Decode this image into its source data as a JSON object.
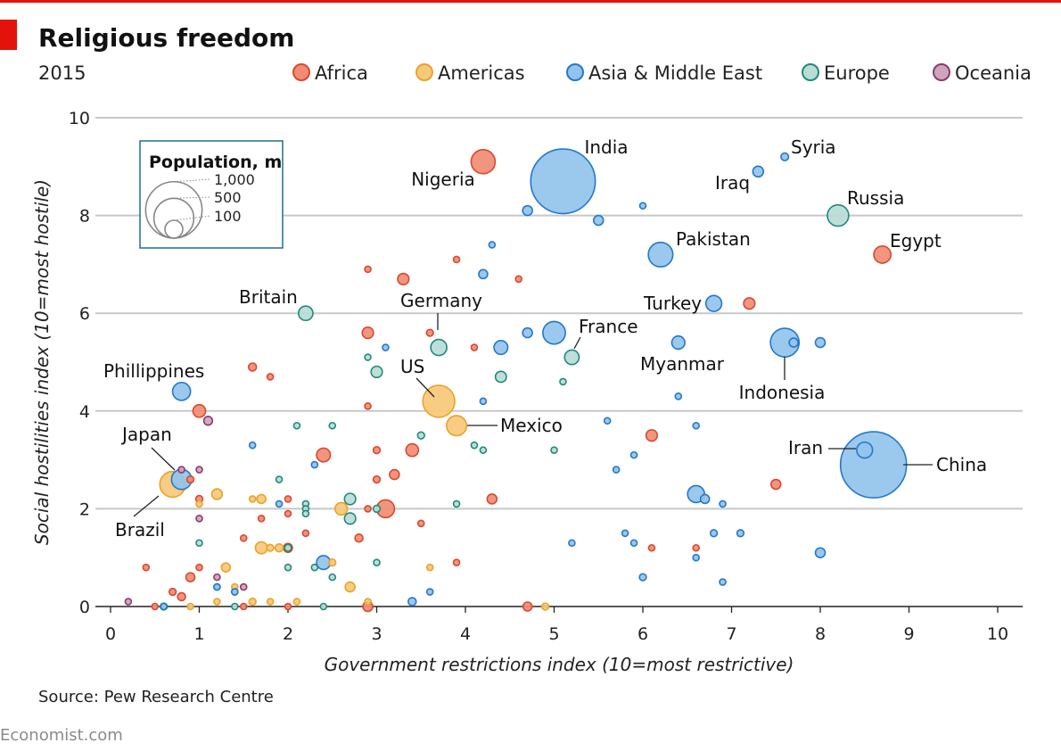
{
  "header": {
    "title": "Religious freedom",
    "subtitle": "2015",
    "source": "Source: Pew Research Centre",
    "brand": "Economist.com",
    "accent": "#e3120b"
  },
  "size_legend": {
    "title": "Population, m",
    "entries": [
      {
        "label": "1,000",
        "value": 1000
      },
      {
        "label": "500",
        "value": 500
      },
      {
        "label": "100",
        "value": 100
      }
    ]
  },
  "colors": {
    "Africa": {
      "fill": "#f08c73",
      "stroke": "#d9482f"
    },
    "Americas": {
      "fill": "#f7c877",
      "stroke": "#e8a32e"
    },
    "Asia & Middle East": {
      "fill": "#93c3ec",
      "stroke": "#2478c8"
    },
    "Europe": {
      "fill": "#b9dcd6",
      "stroke": "#1f8a7b"
    },
    "Oceania": {
      "fill": "#cfa3bd",
      "stroke": "#8a3b6a"
    },
    "grid": "#c8c8c8",
    "legend_box": "#1f6e96"
  },
  "chart_data": {
    "type": "scatter",
    "title": "Religious freedom",
    "subtitle": "2015",
    "xlabel": "Government restrictions index (10=most restrictive)",
    "ylabel": "Social hostilities index  (10=most hostile)",
    "xlim": [
      0,
      10
    ],
    "ylim": [
      0,
      10
    ],
    "x_ticks": [
      0,
      1,
      2,
      3,
      4,
      5,
      6,
      7,
      8,
      9,
      10
    ],
    "y_ticks": [
      0,
      2,
      4,
      6,
      8,
      10
    ],
    "grid": "horizontal",
    "legend": [
      "Africa",
      "Americas",
      "Asia & Middle East",
      "Europe",
      "Oceania"
    ],
    "legend_position": "top",
    "size_variable": "Population, m",
    "labeled_points": [
      {
        "name": "India",
        "region": "Asia & Middle East",
        "x": 5.1,
        "y": 8.7,
        "pop": 1311
      },
      {
        "name": "Nigeria",
        "region": "Africa",
        "x": 4.2,
        "y": 9.1,
        "pop": 182
      },
      {
        "name": "Syria",
        "region": "Asia & Middle East",
        "x": 7.6,
        "y": 9.2,
        "pop": 18
      },
      {
        "name": "Iraq",
        "region": "Asia & Middle East",
        "x": 7.3,
        "y": 8.9,
        "pop": 36
      },
      {
        "name": "Russia",
        "region": "Europe",
        "x": 8.2,
        "y": 8.0,
        "pop": 143
      },
      {
        "name": "Egypt",
        "region": "Africa",
        "x": 8.7,
        "y": 7.2,
        "pop": 92
      },
      {
        "name": "Pakistan",
        "region": "Asia & Middle East",
        "x": 6.2,
        "y": 7.2,
        "pop": 189
      },
      {
        "name": "Turkey",
        "region": "Asia & Middle East",
        "x": 6.8,
        "y": 6.2,
        "pop": 79
      },
      {
        "name": "Britain",
        "region": "Europe",
        "x": 2.2,
        "y": 6.0,
        "pop": 65
      },
      {
        "name": "Germany",
        "region": "Europe",
        "x": 3.7,
        "y": 5.3,
        "pop": 81
      },
      {
        "name": "France",
        "region": "Europe",
        "x": 5.2,
        "y": 5.1,
        "pop": 66
      },
      {
        "name": "Myanmar",
        "region": "Asia & Middle East",
        "x": 6.4,
        "y": 5.4,
        "pop": 54
      },
      {
        "name": "Indonesia",
        "region": "Asia & Middle East",
        "x": 7.6,
        "y": 5.4,
        "pop": 258
      },
      {
        "name": "Phillippines",
        "region": "Asia & Middle East",
        "x": 0.8,
        "y": 4.4,
        "pop": 101
      },
      {
        "name": "US",
        "region": "Americas",
        "x": 3.7,
        "y": 4.2,
        "pop": 321
      },
      {
        "name": "Mexico",
        "region": "Americas",
        "x": 3.9,
        "y": 3.7,
        "pop": 127
      },
      {
        "name": "Japan",
        "region": "Asia & Middle East",
        "x": 0.8,
        "y": 2.6,
        "pop": 127
      },
      {
        "name": "Brazil",
        "region": "Americas",
        "x": 0.7,
        "y": 2.5,
        "pop": 208
      },
      {
        "name": "Iran",
        "region": "Asia & Middle East",
        "x": 8.5,
        "y": 3.2,
        "pop": 79
      },
      {
        "name": "China",
        "region": "Asia & Middle East",
        "x": 8.6,
        "y": 2.9,
        "pop": 1371
      }
    ],
    "points": [
      {
        "region": "Asia & Middle East",
        "x": 4.7,
        "y": 8.1,
        "pop": 30
      },
      {
        "region": "Asia & Middle East",
        "x": 5.5,
        "y": 7.9,
        "pop": 30
      },
      {
        "region": "Asia & Middle East",
        "x": 6.0,
        "y": 8.2,
        "pop": 10
      },
      {
        "region": "Asia & Middle East",
        "x": 4.3,
        "y": 7.4,
        "pop": 5
      },
      {
        "region": "Asia & Middle East",
        "x": 4.2,
        "y": 6.8,
        "pop": 25
      },
      {
        "region": "Asia & Middle East",
        "x": 4.7,
        "y": 5.6,
        "pop": 30
      },
      {
        "region": "Asia & Middle East",
        "x": 5.0,
        "y": 5.6,
        "pop": 160
      },
      {
        "region": "Asia & Middle East",
        "x": 4.4,
        "y": 5.3,
        "pop": 60
      },
      {
        "region": "Asia & Middle East",
        "x": 3.1,
        "y": 5.3,
        "pop": 5
      },
      {
        "region": "Asia & Middle East",
        "x": 7.7,
        "y": 5.4,
        "pop": 25
      },
      {
        "region": "Asia & Middle East",
        "x": 8.0,
        "y": 5.4,
        "pop": 30
      },
      {
        "region": "Asia & Middle East",
        "x": 6.4,
        "y": 4.3,
        "pop": 8
      },
      {
        "region": "Asia & Middle East",
        "x": 4.2,
        "y": 4.2,
        "pop": 5
      },
      {
        "region": "Asia & Middle East",
        "x": 5.6,
        "y": 3.8,
        "pop": 12
      },
      {
        "region": "Asia & Middle East",
        "x": 6.6,
        "y": 3.7,
        "pop": 3
      },
      {
        "region": "Asia & Middle East",
        "x": 5.9,
        "y": 3.1,
        "pop": 8
      },
      {
        "region": "Asia & Middle East",
        "x": 5.7,
        "y": 2.8,
        "pop": 12
      },
      {
        "region": "Asia & Middle East",
        "x": 6.6,
        "y": 2.3,
        "pop": 90
      },
      {
        "region": "Asia & Middle East",
        "x": 6.7,
        "y": 2.2,
        "pop": 25
      },
      {
        "region": "Asia & Middle East",
        "x": 6.9,
        "y": 2.1,
        "pop": 3
      },
      {
        "region": "Asia & Middle East",
        "x": 5.8,
        "y": 1.5,
        "pop": 8
      },
      {
        "region": "Asia & Middle East",
        "x": 6.8,
        "y": 1.5,
        "pop": 15
      },
      {
        "region": "Asia & Middle East",
        "x": 7.1,
        "y": 1.5,
        "pop": 15
      },
      {
        "region": "Asia & Middle East",
        "x": 5.9,
        "y": 1.3,
        "pop": 5
      },
      {
        "region": "Asia & Middle East",
        "x": 5.2,
        "y": 1.3,
        "pop": 3
      },
      {
        "region": "Asia & Middle East",
        "x": 8.0,
        "y": 1.1,
        "pop": 30
      },
      {
        "region": "Asia & Middle East",
        "x": 6.6,
        "y": 1.0,
        "pop": 10
      },
      {
        "region": "Asia & Middle East",
        "x": 6.0,
        "y": 0.6,
        "pop": 15
      },
      {
        "region": "Asia & Middle East",
        "x": 6.9,
        "y": 0.5,
        "pop": 10
      },
      {
        "region": "Asia & Middle East",
        "x": 2.4,
        "y": 0.9,
        "pop": 60
      },
      {
        "region": "Asia & Middle East",
        "x": 3.4,
        "y": 0.1,
        "pop": 20
      },
      {
        "region": "Asia & Middle East",
        "x": 3.6,
        "y": 0.3,
        "pop": 3
      },
      {
        "region": "Asia & Middle East",
        "x": 1.6,
        "y": 3.3,
        "pop": 3
      },
      {
        "region": "Asia & Middle East",
        "x": 2.3,
        "y": 2.9,
        "pop": 3
      },
      {
        "region": "Asia & Middle East",
        "x": 1.9,
        "y": 2.1,
        "pop": 8
      },
      {
        "region": "Asia & Middle East",
        "x": 1.2,
        "y": 0.4,
        "pop": 3
      },
      {
        "region": "Asia & Middle East",
        "x": 1.4,
        "y": 0.3,
        "pop": 3
      },
      {
        "region": "Asia & Middle East",
        "x": 0.6,
        "y": 0.0,
        "pop": 3
      },
      {
        "region": "Africa",
        "x": 2.9,
        "y": 6.9,
        "pop": 5
      },
      {
        "region": "Africa",
        "x": 3.3,
        "y": 6.7,
        "pop": 40
      },
      {
        "region": "Africa",
        "x": 3.9,
        "y": 7.1,
        "pop": 5
      },
      {
        "region": "Africa",
        "x": 4.6,
        "y": 6.7,
        "pop": 8
      },
      {
        "region": "Africa",
        "x": 7.2,
        "y": 6.2,
        "pop": 40
      },
      {
        "region": "Africa",
        "x": 2.9,
        "y": 5.6,
        "pop": 40
      },
      {
        "region": "Africa",
        "x": 3.6,
        "y": 5.6,
        "pop": 15
      },
      {
        "region": "Africa",
        "x": 4.1,
        "y": 5.3,
        "pop": 10
      },
      {
        "region": "Africa",
        "x": 1.6,
        "y": 4.9,
        "pop": 20
      },
      {
        "region": "Africa",
        "x": 1.8,
        "y": 4.7,
        "pop": 12
      },
      {
        "region": "Africa",
        "x": 1.0,
        "y": 4.0,
        "pop": 50
      },
      {
        "region": "Africa",
        "x": 2.9,
        "y": 4.1,
        "pop": 10
      },
      {
        "region": "Africa",
        "x": 6.1,
        "y": 3.5,
        "pop": 40
      },
      {
        "region": "Africa",
        "x": 2.4,
        "y": 3.1,
        "pop": 60
      },
      {
        "region": "Africa",
        "x": 3.0,
        "y": 3.2,
        "pop": 15
      },
      {
        "region": "Africa",
        "x": 3.4,
        "y": 3.2,
        "pop": 50
      },
      {
        "region": "Africa",
        "x": 3.2,
        "y": 2.7,
        "pop": 30
      },
      {
        "region": "Africa",
        "x": 3.0,
        "y": 2.6,
        "pop": 15
      },
      {
        "region": "Africa",
        "x": 3.1,
        "y": 2.0,
        "pop": 100
      },
      {
        "region": "Africa",
        "x": 4.3,
        "y": 2.2,
        "pop": 30
      },
      {
        "region": "Africa",
        "x": 7.5,
        "y": 2.5,
        "pop": 30
      },
      {
        "region": "Africa",
        "x": 2.0,
        "y": 2.2,
        "pop": 5
      },
      {
        "region": "Africa",
        "x": 2.9,
        "y": 2.0,
        "pop": 12
      },
      {
        "region": "Africa",
        "x": 2.0,
        "y": 1.9,
        "pop": 5
      },
      {
        "region": "Africa",
        "x": 1.7,
        "y": 1.8,
        "pop": 5
      },
      {
        "region": "Africa",
        "x": 2.2,
        "y": 1.5,
        "pop": 3
      },
      {
        "region": "Africa",
        "x": 2.8,
        "y": 1.4,
        "pop": 20
      },
      {
        "region": "Africa",
        "x": 1.5,
        "y": 1.4,
        "pop": 3
      },
      {
        "region": "Africa",
        "x": 3.5,
        "y": 1.7,
        "pop": 3
      },
      {
        "region": "Africa",
        "x": 2.0,
        "y": 1.2,
        "pop": 25
      },
      {
        "region": "Africa",
        "x": 6.1,
        "y": 1.2,
        "pop": 3
      },
      {
        "region": "Africa",
        "x": 6.6,
        "y": 1.2,
        "pop": 5
      },
      {
        "region": "Africa",
        "x": 3.9,
        "y": 0.9,
        "pop": 3
      },
      {
        "region": "Africa",
        "x": 1.0,
        "y": 2.2,
        "pop": 15
      },
      {
        "region": "Africa",
        "x": 0.9,
        "y": 2.6,
        "pop": 15
      },
      {
        "region": "Africa",
        "x": 1.0,
        "y": 0.8,
        "pop": 5
      },
      {
        "region": "Africa",
        "x": 0.4,
        "y": 0.8,
        "pop": 5
      },
      {
        "region": "Africa",
        "x": 0.9,
        "y": 0.6,
        "pop": 25
      },
      {
        "region": "Africa",
        "x": 0.7,
        "y": 0.3,
        "pop": 15
      },
      {
        "region": "Africa",
        "x": 0.8,
        "y": 0.2,
        "pop": 20
      },
      {
        "region": "Africa",
        "x": 0.5,
        "y": 0.0,
        "pop": 3
      },
      {
        "region": "Africa",
        "x": 1.5,
        "y": 0.0,
        "pop": 3
      },
      {
        "region": "Africa",
        "x": 2.0,
        "y": 0.0,
        "pop": 3
      },
      {
        "region": "Africa",
        "x": 2.9,
        "y": 0.0,
        "pop": 30
      },
      {
        "region": "Africa",
        "x": 4.7,
        "y": 0.0,
        "pop": 25
      },
      {
        "region": "Americas",
        "x": 1.2,
        "y": 2.3,
        "pop": 35
      },
      {
        "region": "Americas",
        "x": 1.7,
        "y": 2.2,
        "pop": 25
      },
      {
        "region": "Americas",
        "x": 1.6,
        "y": 2.2,
        "pop": 5
      },
      {
        "region": "Americas",
        "x": 2.6,
        "y": 2.0,
        "pop": 48
      },
      {
        "region": "Americas",
        "x": 1.7,
        "y": 1.2,
        "pop": 45
      },
      {
        "region": "Americas",
        "x": 1.8,
        "y": 1.2,
        "pop": 15
      },
      {
        "region": "Americas",
        "x": 1.9,
        "y": 1.2,
        "pop": 20
      },
      {
        "region": "Americas",
        "x": 1.3,
        "y": 0.8,
        "pop": 25
      },
      {
        "region": "Americas",
        "x": 2.5,
        "y": 0.9,
        "pop": 15
      },
      {
        "region": "Americas",
        "x": 2.7,
        "y": 0.4,
        "pop": 30
      },
      {
        "region": "Americas",
        "x": 3.6,
        "y": 0.8,
        "pop": 3
      },
      {
        "region": "Americas",
        "x": 1.0,
        "y": 2.1,
        "pop": 10
      },
      {
        "region": "Americas",
        "x": 1.4,
        "y": 0.4,
        "pop": 10
      },
      {
        "region": "Americas",
        "x": 1.6,
        "y": 0.1,
        "pop": 15
      },
      {
        "region": "Americas",
        "x": 1.8,
        "y": 0.1,
        "pop": 10
      },
      {
        "region": "Americas",
        "x": 2.1,
        "y": 0.1,
        "pop": 10
      },
      {
        "region": "Americas",
        "x": 2.9,
        "y": 0.1,
        "pop": 10
      },
      {
        "region": "Americas",
        "x": 4.9,
        "y": 0.0,
        "pop": 15
      },
      {
        "region": "Americas",
        "x": 1.2,
        "y": 0.1,
        "pop": 5
      },
      {
        "region": "Americas",
        "x": 0.9,
        "y": 0.0,
        "pop": 3
      },
      {
        "region": "Europe",
        "x": 3.0,
        "y": 4.8,
        "pop": 40
      },
      {
        "region": "Europe",
        "x": 2.9,
        "y": 5.1,
        "pop": 8
      },
      {
        "region": "Europe",
        "x": 4.4,
        "y": 4.7,
        "pop": 38
      },
      {
        "region": "Europe",
        "x": 5.1,
        "y": 4.6,
        "pop": 5
      },
      {
        "region": "Europe",
        "x": 3.5,
        "y": 3.5,
        "pop": 15
      },
      {
        "region": "Europe",
        "x": 4.1,
        "y": 3.3,
        "pop": 12
      },
      {
        "region": "Europe",
        "x": 4.2,
        "y": 3.2,
        "pop": 12
      },
      {
        "region": "Europe",
        "x": 5.0,
        "y": 3.2,
        "pop": 10
      },
      {
        "region": "Europe",
        "x": 2.1,
        "y": 3.7,
        "pop": 5
      },
      {
        "region": "Europe",
        "x": 2.5,
        "y": 3.7,
        "pop": 8
      },
      {
        "region": "Europe",
        "x": 1.9,
        "y": 2.6,
        "pop": 10
      },
      {
        "region": "Europe",
        "x": 2.2,
        "y": 2.1,
        "pop": 10
      },
      {
        "region": "Europe",
        "x": 2.2,
        "y": 2.0,
        "pop": 10
      },
      {
        "region": "Europe",
        "x": 2.2,
        "y": 1.9,
        "pop": 10
      },
      {
        "region": "Europe",
        "x": 2.7,
        "y": 2.2,
        "pop": 40
      },
      {
        "region": "Europe",
        "x": 2.7,
        "y": 1.8,
        "pop": 40
      },
      {
        "region": "Europe",
        "x": 3.0,
        "y": 2.0,
        "pop": 15
      },
      {
        "region": "Europe",
        "x": 3.9,
        "y": 2.1,
        "pop": 10
      },
      {
        "region": "Europe",
        "x": 2.0,
        "y": 1.2,
        "pop": 15
      },
      {
        "region": "Europe",
        "x": 1.0,
        "y": 1.3,
        "pop": 5
      },
      {
        "region": "Europe",
        "x": 2.0,
        "y": 0.8,
        "pop": 3
      },
      {
        "region": "Europe",
        "x": 2.3,
        "y": 0.8,
        "pop": 5
      },
      {
        "region": "Europe",
        "x": 2.5,
        "y": 0.6,
        "pop": 3
      },
      {
        "region": "Europe",
        "x": 3.0,
        "y": 0.9,
        "pop": 8
      },
      {
        "region": "Europe",
        "x": 1.4,
        "y": 0.3,
        "pop": 8
      },
      {
        "region": "Europe",
        "x": 1.2,
        "y": 0.4,
        "pop": 5
      },
      {
        "region": "Europe",
        "x": 0.6,
        "y": 0.0,
        "pop": 15
      },
      {
        "region": "Europe",
        "x": 1.4,
        "y": 0.0,
        "pop": 3
      },
      {
        "region": "Europe",
        "x": 2.4,
        "y": 0.0,
        "pop": 3
      },
      {
        "region": "Oceania",
        "x": 1.1,
        "y": 3.8,
        "pop": 24
      },
      {
        "region": "Oceania",
        "x": 1.0,
        "y": 2.8,
        "pop": 5
      },
      {
        "region": "Oceania",
        "x": 0.8,
        "y": 2.8,
        "pop": 5
      },
      {
        "region": "Oceania",
        "x": 1.0,
        "y": 1.8,
        "pop": 3
      },
      {
        "region": "Oceania",
        "x": 1.5,
        "y": 0.4,
        "pop": 3
      },
      {
        "region": "Oceania",
        "x": 0.2,
        "y": 0.1,
        "pop": 5
      },
      {
        "region": "Oceania",
        "x": 1.2,
        "y": 0.6,
        "pop": 3
      }
    ]
  }
}
